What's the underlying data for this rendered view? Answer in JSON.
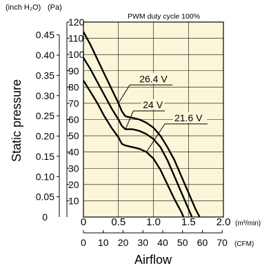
{
  "chart_data": {
    "type": "line",
    "title": "PWM duty cycle 100%",
    "ylabel": "Static pressure",
    "xlabel": "Airflow",
    "units": {
      "left_inch": "(inch H₂O)",
      "left_pa": "(Pa)",
      "x_m3": "(m³/min)",
      "x_cfm": "(CFM)"
    },
    "ylim_pa": [
      0,
      120
    ],
    "xlim_m3min": [
      0,
      2.0
    ],
    "y_pa_ticks": [
      "10",
      "20",
      "30",
      "40",
      "50",
      "60",
      "70",
      "80",
      "90",
      "100",
      "110",
      "120"
    ],
    "y_inch_ticks": [
      {
        "v": 0.05,
        "label": "0.05"
      },
      {
        "v": 0.1,
        "label": "0.10"
      },
      {
        "v": 0.15,
        "label": "0.15"
      },
      {
        "v": 0.2,
        "label": "0.20"
      },
      {
        "v": 0.25,
        "label": "0.25"
      },
      {
        "v": 0.3,
        "label": "0.30"
      },
      {
        "v": 0.35,
        "label": "0.35"
      },
      {
        "v": 0.4,
        "label": "0.40"
      },
      {
        "v": 0.45,
        "label": "0.45"
      }
    ],
    "y_zero_label": "0",
    "x_m3_ticks": [
      {
        "v": 0,
        "label": "0"
      },
      {
        "v": 0.5,
        "label": "0.5"
      },
      {
        "v": 1.0,
        "label": "1.0"
      },
      {
        "v": 1.5,
        "label": "1.5"
      },
      {
        "v": 2.0,
        "label": "2.0"
      }
    ],
    "x_cfm_ticks": [
      {
        "v": 0,
        "label": "0"
      },
      {
        "v": 10,
        "label": "10"
      },
      {
        "v": 20,
        "label": "20"
      },
      {
        "v": 30,
        "label": "30"
      },
      {
        "v": 40,
        "label": "40"
      },
      {
        "v": 50,
        "label": "50"
      },
      {
        "v": 60,
        "label": "60"
      },
      {
        "v": 70,
        "label": "70"
      }
    ],
    "grid": true,
    "series": [
      {
        "name": "26.4 V",
        "x": [
          0,
          0.1,
          0.2,
          0.3,
          0.4,
          0.5,
          0.55,
          0.6,
          0.7,
          0.8,
          0.9,
          1.0,
          1.1,
          1.2,
          1.3,
          1.4,
          1.5,
          1.6,
          1.66
        ],
        "y": [
          114,
          106,
          97,
          88,
          79,
          70,
          65,
          62,
          61,
          60,
          58,
          55,
          50,
          43,
          35,
          25,
          15,
          5,
          0
        ]
      },
      {
        "name": "24 V",
        "x": [
          0,
          0.1,
          0.2,
          0.3,
          0.4,
          0.5,
          0.55,
          0.6,
          0.7,
          0.8,
          0.9,
          1.0,
          1.1,
          1.2,
          1.3,
          1.4,
          1.5,
          1.55
        ],
        "y": [
          98,
          91,
          83,
          75,
          67,
          60,
          56,
          54,
          54,
          53,
          51,
          48,
          43,
          35,
          25,
          15,
          5,
          0
        ]
      },
      {
        "name": "21.6 V",
        "x": [
          0,
          0.1,
          0.2,
          0.3,
          0.4,
          0.5,
          0.55,
          0.6,
          0.7,
          0.8,
          0.9,
          1.0,
          1.1,
          1.2,
          1.3,
          1.4,
          1.43
        ],
        "y": [
          84,
          77,
          70,
          62,
          55,
          49,
          45,
          44,
          43,
          42,
          40,
          36,
          29,
          20,
          11,
          3,
          0
        ]
      }
    ],
    "annotations": [
      {
        "series": 0,
        "text": "26.4 V",
        "at": [
          0.5,
          70
        ],
        "label": [
          0.8,
          83
        ]
      },
      {
        "series": 1,
        "text": "24 V",
        "at": [
          0.6,
          54
        ],
        "label": [
          0.85,
          67
        ]
      },
      {
        "series": 2,
        "text": "21.6 V",
        "at": [
          0.9,
          40
        ],
        "label": [
          1.3,
          59
        ]
      }
    ]
  }
}
